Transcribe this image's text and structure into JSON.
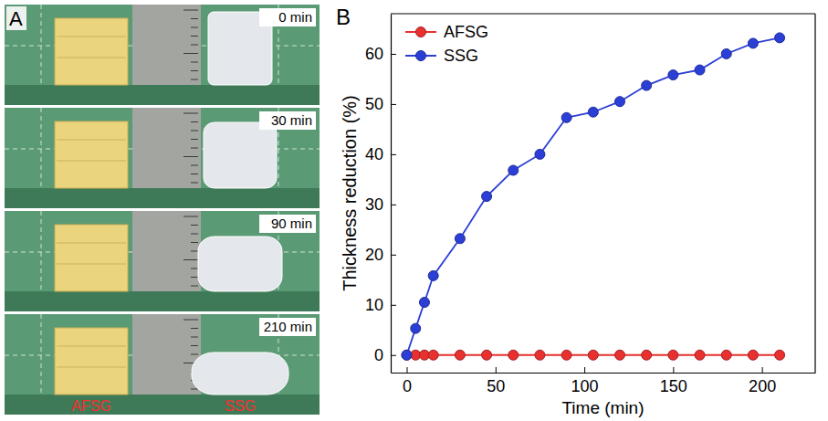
{
  "panel_a": {
    "letter": "A",
    "frames": [
      "0 min",
      "30 min",
      "90 min",
      "210 min"
    ],
    "sample_labels": [
      "AFSG",
      "SSG"
    ]
  },
  "chart_data": {
    "type": "line",
    "panel_label": "B",
    "x_label": "Time (min)",
    "y_label": "Thickness reduction (%)",
    "x": [
      0,
      5,
      10,
      15,
      30,
      45,
      60,
      75,
      90,
      105,
      120,
      135,
      150,
      165,
      180,
      195,
      210
    ],
    "series": [
      {
        "name": "AFSG",
        "color": "#e8302f",
        "marker": "circle",
        "values": [
          0,
          0,
          0,
          0,
          0,
          0,
          0,
          0,
          0,
          0,
          0,
          0,
          0,
          0,
          0,
          0,
          0
        ]
      },
      {
        "name": "SSG",
        "color": "#2b3fd6",
        "marker": "circle",
        "values": [
          0,
          5.3,
          10.5,
          15.8,
          23.2,
          31.6,
          36.8,
          40,
          47.3,
          48.4,
          50.5,
          53.7,
          55.8,
          56.8,
          60,
          62.1,
          63.2
        ]
      }
    ],
    "xlim": [
      -9,
      230
    ],
    "ylim": [
      -3.5,
      68
    ],
    "xticks": [
      0,
      50,
      100,
      150,
      200
    ],
    "yticks": [
      0,
      10,
      20,
      30,
      40,
      50,
      60
    ],
    "legend": "upper left",
    "grid": false
  }
}
